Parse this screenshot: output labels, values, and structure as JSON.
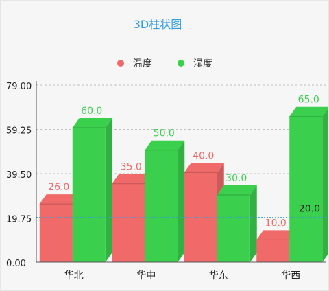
{
  "chart_data": {
    "type": "bar",
    "style": "3d",
    "title": "3D柱状图",
    "categories": [
      "华北",
      "华中",
      "华东",
      "华西"
    ],
    "series": [
      {
        "name": "温度",
        "values": [
          26.0,
          35.0,
          40.0,
          10.0
        ],
        "color": "#f06a6a"
      },
      {
        "name": "湿度",
        "values": [
          60.0,
          50.0,
          30.0,
          65.0
        ],
        "color": "#3ad04d"
      }
    ],
    "ylim": [
      0,
      79.0
    ],
    "yticks": [
      "0.00",
      "19.75",
      "39.50",
      "59.25",
      "79.00"
    ],
    "reference_line": {
      "value": 20.0,
      "label": "20.0",
      "color": "#3b9bd9"
    },
    "legend_position": "top-center",
    "grid": "horizontal-dashed"
  },
  "colors": {
    "title": "#2f9be0",
    "axis": "#333333",
    "grid": "#bfbfbf"
  }
}
